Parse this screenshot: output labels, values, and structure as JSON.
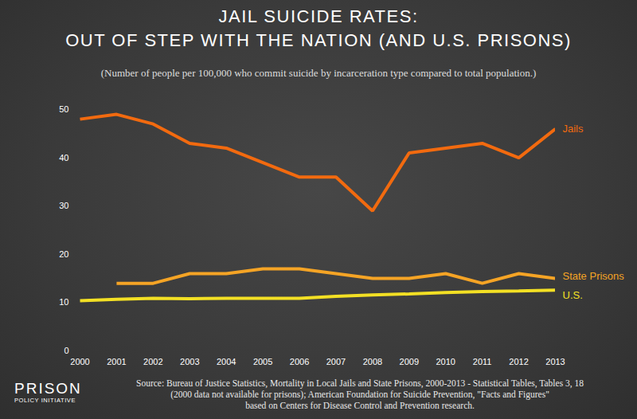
{
  "chart_data": {
    "type": "line",
    "title": [
      "JAIL SUICIDE RATES:",
      "OUT OF STEP WITH THE NATION (AND U.S. PRISONS)"
    ],
    "subtitle": "(Number of people per 100,000 who commit suicide by incarceration type compared to total population.)",
    "x": [
      2000,
      2001,
      2002,
      2003,
      2004,
      2005,
      2006,
      2007,
      2008,
      2009,
      2010,
      2011,
      2012,
      2013
    ],
    "series": [
      {
        "name": "Jails",
        "color": "#f26a0f",
        "values": [
          48,
          49,
          47,
          43,
          42,
          39,
          36,
          36,
          29,
          41,
          42,
          43,
          40,
          46
        ]
      },
      {
        "name": "State Prisons",
        "color": "#f5a425",
        "values": [
          null,
          14,
          14,
          16,
          16,
          17,
          17,
          16,
          15,
          15,
          16,
          14,
          16,
          15
        ]
      },
      {
        "name": "U.S.",
        "color": "#f3e024",
        "values": [
          10.4,
          10.7,
          10.9,
          10.8,
          10.9,
          10.9,
          10.9,
          11.3,
          11.6,
          11.8,
          12.1,
          12.3,
          12.4,
          12.6
        ]
      }
    ],
    "xlim": [
      2000,
      2013
    ],
    "xticks": [
      2000,
      2001,
      2002,
      2003,
      2004,
      2005,
      2006,
      2007,
      2008,
      2009,
      2010,
      2011,
      2012,
      2013
    ],
    "ylim": [
      0,
      50
    ],
    "yticks": [
      0,
      10,
      20,
      30,
      40,
      50
    ],
    "grid": false,
    "source": [
      "Source: Bureau of Justice Statistics, Mortality in Local Jails and State Prisons, 2000-2013 - Statistical Tables, Tables 3, 18",
      "(2000 data not available for prisons); American Foundation for Suicide Prevention, \"Facts and Figures\"",
      "based on Centers for Disease Control and Prevention research."
    ],
    "logo": [
      "PRISON",
      "POLICY INITIATIVE"
    ]
  }
}
